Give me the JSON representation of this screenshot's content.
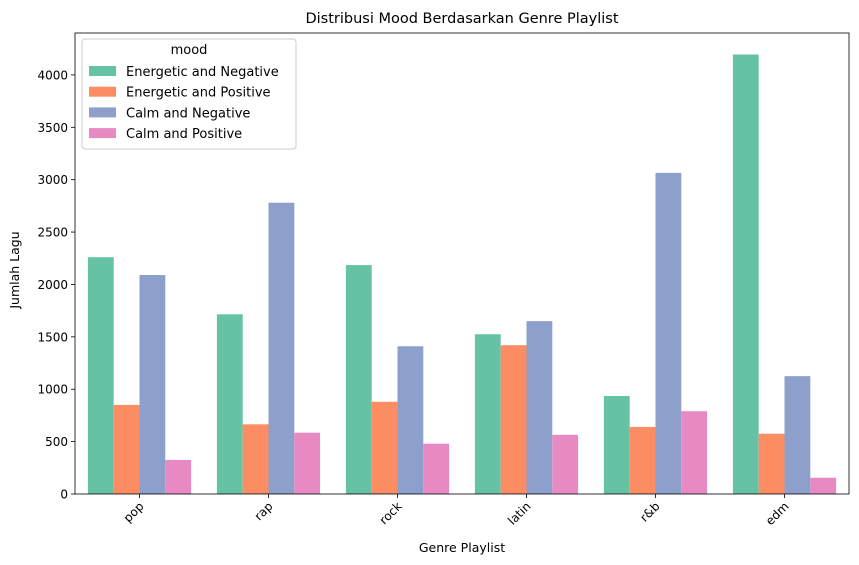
{
  "chart_data": {
    "type": "bar",
    "title": "Distribusi Mood Berdasarkan Genre Playlist",
    "xlabel": "Genre Playlist",
    "ylabel": "Jumlah Lagu",
    "categories": [
      "pop",
      "rap",
      "rock",
      "latin",
      "r&b",
      "edm"
    ],
    "ylim": [
      0,
      4400
    ],
    "yticks": [
      0,
      500,
      1000,
      1500,
      2000,
      2500,
      3000,
      3500,
      4000
    ],
    "grid": false,
    "legend": {
      "title": "mood",
      "placement": "top-left"
    },
    "series": [
      {
        "name": "Energetic and Negative",
        "color": "#66c2a5",
        "values": [
          2260,
          1715,
          2185,
          1525,
          935,
          4195
        ]
      },
      {
        "name": "Energetic and Positive",
        "color": "#fc8d62",
        "values": [
          850,
          665,
          880,
          1420,
          640,
          575
        ]
      },
      {
        "name": "Calm and Negative",
        "color": "#8da0cb",
        "values": [
          2090,
          2780,
          1410,
          1650,
          3065,
          1125
        ]
      },
      {
        "name": "Calm and Positive",
        "color": "#e78ac3",
        "values": [
          325,
          585,
          480,
          565,
          790,
          155
        ]
      }
    ]
  }
}
